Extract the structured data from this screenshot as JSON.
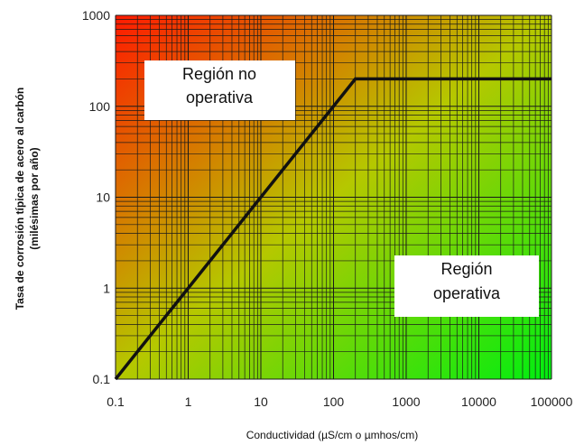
{
  "chart_data": {
    "type": "line",
    "title": "",
    "xlabel": "Conductividad (µS/cm o µmhos/cm)",
    "ylabel_line1": "Tasa de corrosión típica de acero al carbón",
    "ylabel_line2": "(milésimas por año)",
    "x_scale": "log",
    "y_scale": "log",
    "xlim": [
      0.1,
      100000
    ],
    "ylim": [
      0.1,
      1000
    ],
    "x_ticks": [
      "0.1",
      "1",
      "10",
      "100",
      "1000",
      "10000",
      "100000"
    ],
    "y_ticks": [
      "0.1",
      "1",
      "10",
      "100",
      "1000"
    ],
    "grid": true,
    "background": "gradient red (top-left) to green (bottom-right)",
    "series": [
      {
        "x": [
          0.1,
          200,
          100000
        ],
        "y": [
          0.1,
          200,
          200
        ],
        "color": "#111111"
      }
    ],
    "annotations": [
      {
        "lines": [
          "Región no",
          "operativa"
        ],
        "position": "upper-left"
      },
      {
        "lines": [
          "Región",
          "operativa"
        ],
        "position": "lower-right"
      }
    ]
  },
  "colors": {
    "top_left": "#ff1a00",
    "mid": "#b5c800",
    "bottom_right": "#00ee10",
    "grid": "#1a1a1a",
    "line": "#111111"
  }
}
